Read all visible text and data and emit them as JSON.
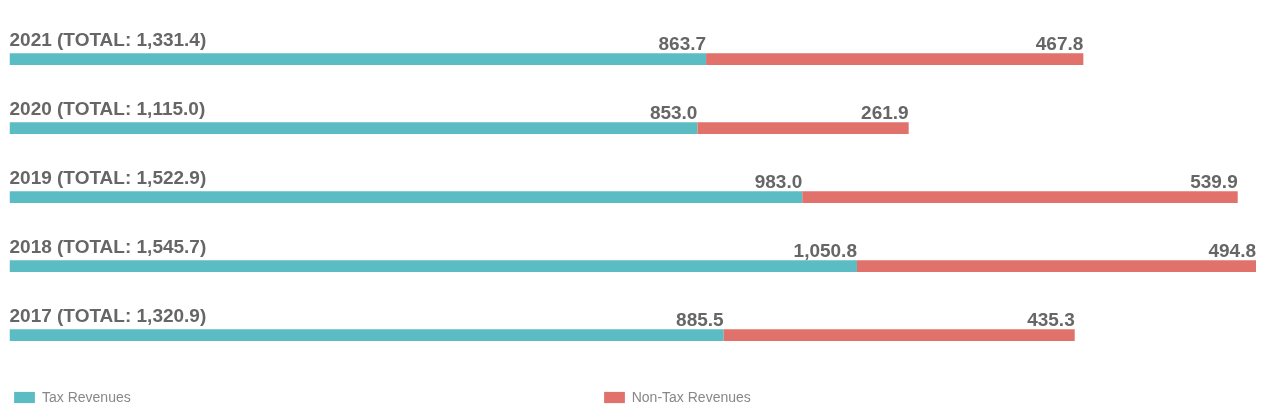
{
  "chart_data": {
    "type": "bar",
    "orientation": "horizontal",
    "stacked": true,
    "categories": [
      "2021 (TOTAL: 1,331.4)",
      "2020 (TOTAL: 1,115.0)",
      "2019 (TOTAL: 1,522.9)",
      "2018 (TOTAL: 1,545.7)",
      "2017 (TOTAL: 1,320.9)"
    ],
    "series": [
      {
        "name": "Tax Revenues",
        "color": "#5bbcc4",
        "values": [
          863.7,
          853.0,
          983.0,
          1050.8,
          885.5
        ],
        "value_labels": [
          "863.7",
          "853.0",
          "983.0",
          "1,050.8",
          "885.5"
        ]
      },
      {
        "name": "Non-Tax Revenues",
        "color": "#e0716b",
        "values": [
          467.8,
          261.9,
          539.9,
          494.8,
          435.3
        ],
        "value_labels": [
          "467.8",
          "261.9",
          "539.9",
          "494.8",
          "435.3"
        ]
      }
    ],
    "tick_labels": false,
    "legend": "bottom"
  }
}
